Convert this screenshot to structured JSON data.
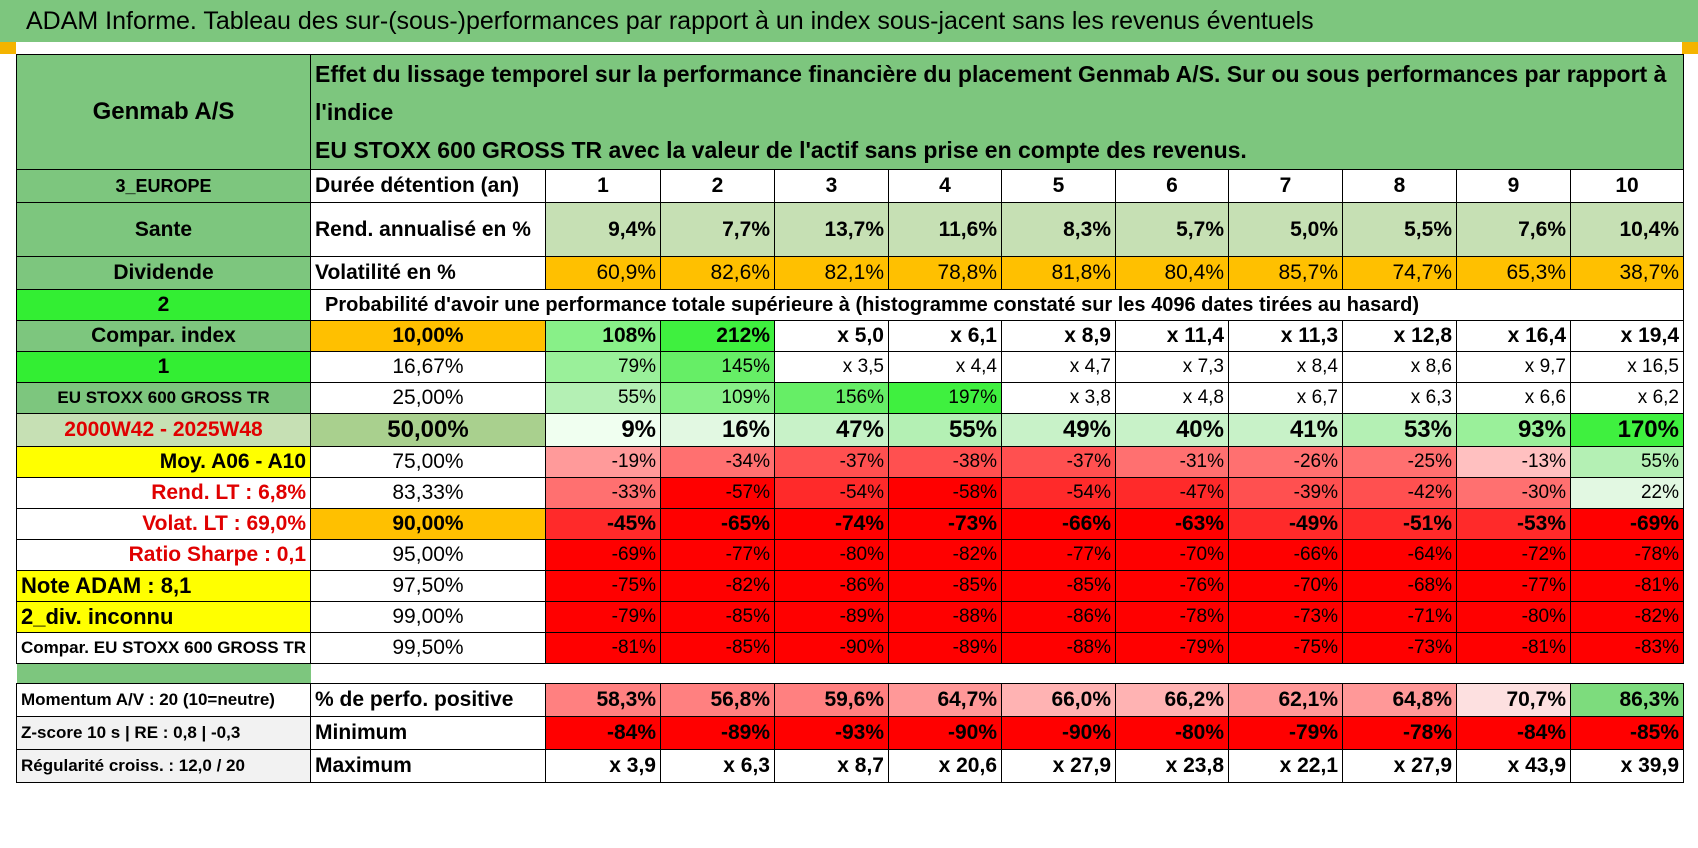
{
  "title": "ADAM Informe. Tableau des sur-(sous-)performances par rapport à un index sous-jacent sans les revenus éventuels",
  "header": {
    "name": "Genmab A/S",
    "description_line1": "Effet du lissage temporel sur la performance financière du placement Genmab A/S. Sur ou sous performances par rapport à l'indice",
    "description_line2": "EU STOXX 600 GROSS TR avec la valeur de l'actif sans prise en compte des revenus."
  },
  "colors": {
    "green_header": "#7dc67e",
    "bright_green": "#33ee33",
    "orange": "#ffc000",
    "yellow": "#ffff00",
    "light_green": "#c6e0b4",
    "red": "#ff0000"
  },
  "left_labels": [
    "3_EUROPE",
    "Sante",
    "Dividende",
    "2",
    "Compar. index",
    "1",
    "EU STOXX 600 GROSS TR",
    "2000W42 - 2025W48",
    "Moy. A06 - A10",
    "Rend. LT :    6,8%",
    "Volat. LT :    69,0%",
    "Ratio Sharpe :    0,1",
    "Note ADAM : 8,1",
    "2_div. inconnu",
    "Compar. EU STOXX 600 GROSS TR"
  ],
  "bottom_labels": [
    "Momentum A/V : 20 (10=neutre)",
    "Z-score 10 s | RE : 0,8 | -0,3",
    "Régularité croiss. : 12,0 / 20"
  ],
  "row_labels": {
    "duration": "Durée détention (an)",
    "return": "Rend. annualisé en %",
    "volatility": "Volatilité en %",
    "probability": "Probabilité d'avoir une performance totale supérieure à (histogramme constaté sur les 4096 dates tirées au hasard)",
    "positive": "% de perfo. positive",
    "minimum": "Minimum",
    "maximum": "Maximum"
  },
  "years": [
    "1",
    "2",
    "3",
    "4",
    "5",
    "6",
    "7",
    "8",
    "9",
    "10"
  ],
  "annual_returns": [
    "9,4%",
    "7,7%",
    "13,7%",
    "11,6%",
    "8,3%",
    "5,7%",
    "5,0%",
    "5,5%",
    "7,6%",
    "10,4%"
  ],
  "volatility": [
    "60,9%",
    "82,6%",
    "82,1%",
    "78,8%",
    "81,8%",
    "80,4%",
    "85,7%",
    "74,7%",
    "65,3%",
    "38,7%"
  ],
  "percentiles": [
    {
      "p": "10,00%",
      "values": [
        "108%",
        "212%",
        "x 5,0",
        "x 6,1",
        "x 8,9",
        "x 11,4",
        "x 11,3",
        "x 12,8",
        "x 16,4",
        "x 19,4"
      ]
    },
    {
      "p": "16,67%",
      "values": [
        "79%",
        "145%",
        "x 3,5",
        "x 4,4",
        "x 4,7",
        "x 7,3",
        "x 8,4",
        "x 8,6",
        "x 9,7",
        "x 16,5"
      ]
    },
    {
      "p": "25,00%",
      "values": [
        "55%",
        "109%",
        "156%",
        "197%",
        "x 3,8",
        "x 4,8",
        "x 6,7",
        "x 6,3",
        "x 6,6",
        "x 6,2"
      ]
    },
    {
      "p": "50,00%",
      "values": [
        "9%",
        "16%",
        "47%",
        "55%",
        "49%",
        "40%",
        "41%",
        "53%",
        "93%",
        "170%"
      ]
    },
    {
      "p": "75,00%",
      "values": [
        "-19%",
        "-34%",
        "-37%",
        "-38%",
        "-37%",
        "-31%",
        "-26%",
        "-25%",
        "-13%",
        "55%"
      ]
    },
    {
      "p": "83,33%",
      "values": [
        "-33%",
        "-57%",
        "-54%",
        "-58%",
        "-54%",
        "-47%",
        "-39%",
        "-42%",
        "-30%",
        "22%"
      ]
    },
    {
      "p": "90,00%",
      "values": [
        "-45%",
        "-65%",
        "-74%",
        "-73%",
        "-66%",
        "-63%",
        "-49%",
        "-51%",
        "-53%",
        "-69%"
      ]
    },
    {
      "p": "95,00%",
      "values": [
        "-69%",
        "-77%",
        "-80%",
        "-82%",
        "-77%",
        "-70%",
        "-66%",
        "-64%",
        "-72%",
        "-78%"
      ]
    },
    {
      "p": "97,50%",
      "values": [
        "-75%",
        "-82%",
        "-86%",
        "-85%",
        "-85%",
        "-76%",
        "-70%",
        "-68%",
        "-77%",
        "-81%"
      ]
    },
    {
      "p": "99,00%",
      "values": [
        "-79%",
        "-85%",
        "-89%",
        "-88%",
        "-86%",
        "-78%",
        "-73%",
        "-71%",
        "-80%",
        "-82%"
      ]
    },
    {
      "p": "99,50%",
      "values": [
        "-81%",
        "-85%",
        "-90%",
        "-89%",
        "-88%",
        "-79%",
        "-75%",
        "-73%",
        "-81%",
        "-83%"
      ]
    }
  ],
  "positive_perf": [
    "58,3%",
    "56,8%",
    "59,6%",
    "64,7%",
    "66,0%",
    "66,2%",
    "62,1%",
    "64,8%",
    "70,7%",
    "86,3%"
  ],
  "minimum": [
    "-84%",
    "-89%",
    "-93%",
    "-90%",
    "-90%",
    "-80%",
    "-79%",
    "-78%",
    "-84%",
    "-85%"
  ],
  "maximum": [
    "x 3,9",
    "x 6,3",
    "x 8,7",
    "x 20,6",
    "x 27,9",
    "x 23,8",
    "x 22,1",
    "x 27,9",
    "x 43,9",
    "x 39,9"
  ]
}
